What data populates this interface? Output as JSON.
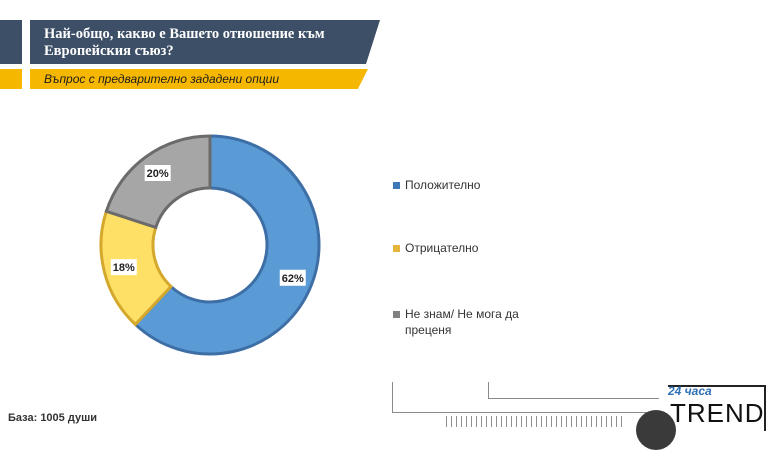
{
  "header": {
    "title": "Най-общо, какво е Вашето отношение към Европейския съюз?",
    "subtitle": "Въпрос с предварително зададени опции"
  },
  "chart_data": {
    "type": "pie",
    "categories": [
      "Положително",
      "Отрицателно",
      "Не знам/ Не мога да преценя"
    ],
    "values": [
      62,
      18,
      20
    ],
    "labels": [
      "62%",
      "18%",
      "20%"
    ],
    "colors": [
      "#5b9bd5",
      "#ffe066",
      "#a6a6a6"
    ],
    "legend_position": "right"
  },
  "footer": {
    "base": "База: 1005 души"
  },
  "logo": {
    "top": "24 часа",
    "word": "TREND"
  }
}
